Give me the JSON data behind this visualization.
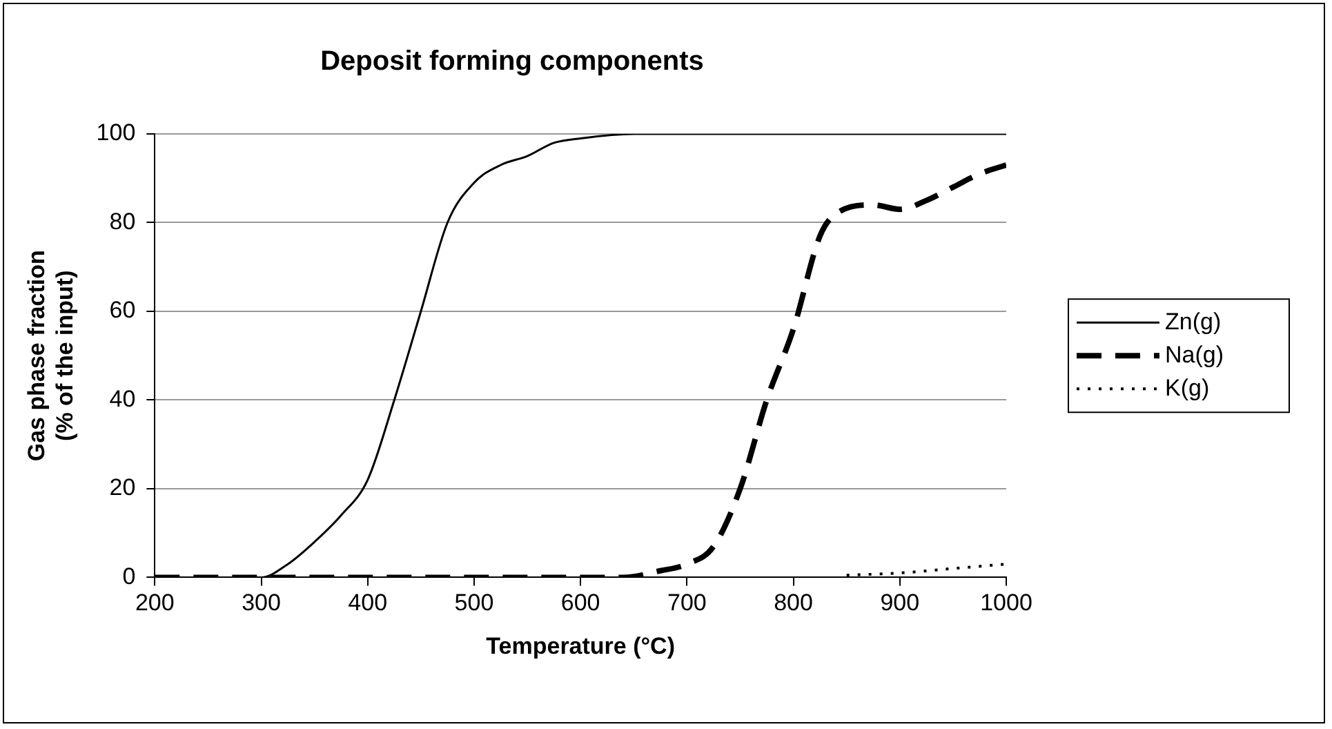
{
  "chart_data": {
    "type": "line",
    "title": "Deposit forming components",
    "xlabel": "Temperature (°C)",
    "ylabel": "Gas phase fraction\n(% of the input)",
    "xlim": [
      200,
      1000
    ],
    "xticks": [
      200,
      300,
      400,
      500,
      600,
      700,
      800,
      900,
      1000
    ],
    "ylim": [
      0,
      100
    ],
    "yticks": [
      0,
      20,
      40,
      60,
      80,
      100
    ],
    "grid": "y",
    "legend": "right",
    "marker": "none",
    "series": [
      {
        "name": "Zn(g)",
        "color": "#000000",
        "line_style": "solid",
        "x": [
          200,
          300,
          325,
          350,
          375,
          400,
          425,
          450,
          475,
          500,
          525,
          550,
          575,
          600,
          650,
          700,
          800,
          900,
          1000
        ],
        "values": [
          0,
          0,
          3,
          8,
          14,
          22,
          40,
          60,
          80,
          89,
          93,
          95,
          98,
          99,
          100,
          100,
          100,
          100,
          100
        ]
      },
      {
        "name": "Na(g)",
        "color": "#000000",
        "line_style": "dashed",
        "x": [
          200,
          600,
          640,
          675,
          700,
          725,
          750,
          775,
          800,
          825,
          840,
          875,
          900,
          925,
          950,
          975,
          1000
        ],
        "values": [
          0,
          0,
          0,
          1.5,
          3,
          7,
          20,
          40,
          56,
          77,
          82,
          84,
          83,
          85,
          88,
          91,
          93
        ]
      },
      {
        "name": "K(g)",
        "color": "#000000",
        "line_style": "dotted",
        "x": [
          850,
          900,
          950,
          1000
        ],
        "values": [
          0.5,
          1,
          2,
          3
        ]
      }
    ]
  }
}
